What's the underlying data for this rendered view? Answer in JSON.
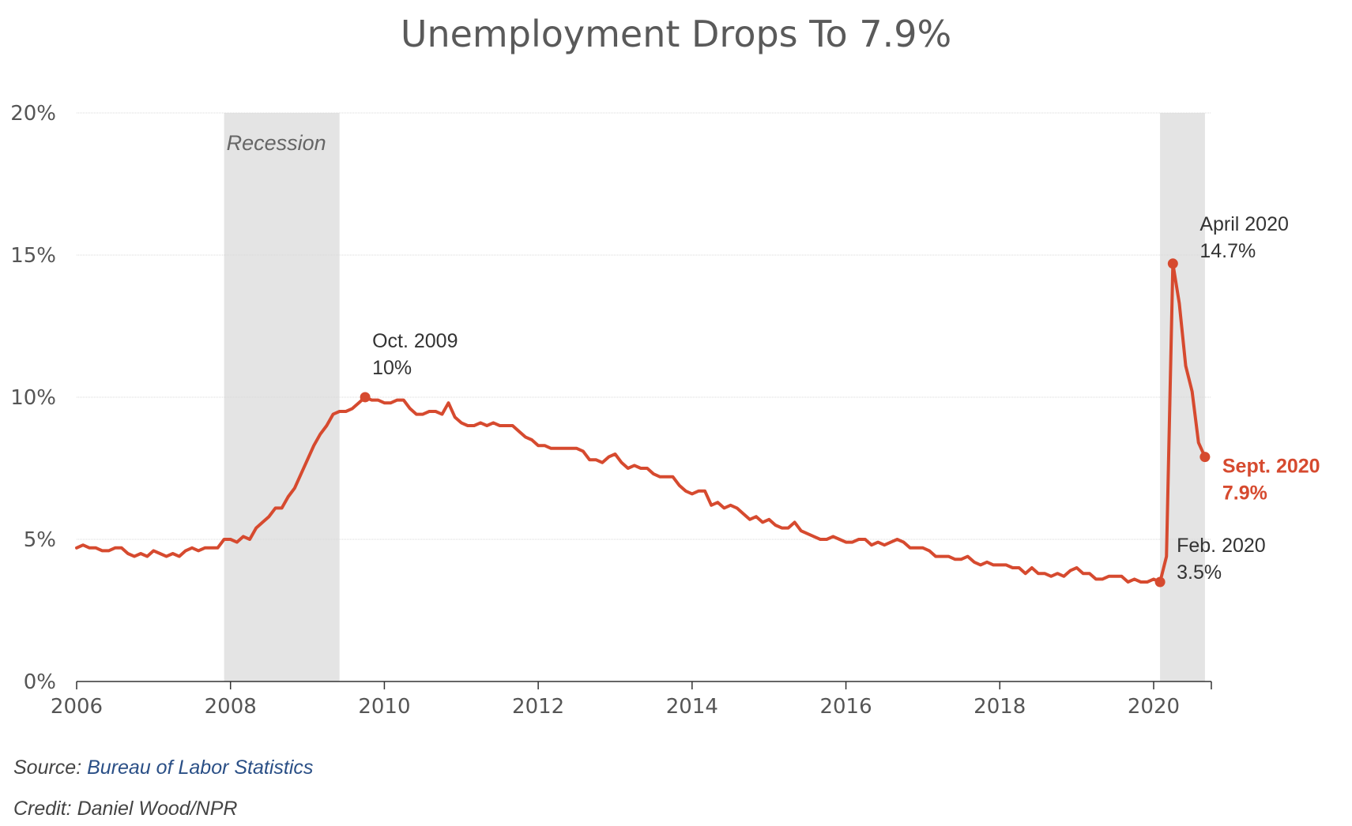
{
  "title": "Unemployment Drops To 7.9%",
  "source_label": "Source:",
  "source_link": "Bureau of Labor Statistics",
  "credit": "Credit: Daniel Wood/NPR",
  "colors": {
    "line": "#d64a2f",
    "recession": "#e4e4e4",
    "grid": "#d9d9d9",
    "text": "#555555"
  },
  "chart_data": {
    "type": "line",
    "title": "Unemployment Drops To 7.9%",
    "xlabel": "",
    "ylabel": "",
    "xlim": [
      2006.0,
      2020.75
    ],
    "ylim": [
      0,
      20
    ],
    "x_ticks": [
      2006,
      2008,
      2010,
      2012,
      2014,
      2016,
      2018,
      2020
    ],
    "y_ticks": [
      {
        "v": 0,
        "label": "0%"
      },
      {
        "v": 5,
        "label": "5%"
      },
      {
        "v": 10,
        "label": "10%"
      },
      {
        "v": 15,
        "label": "15%"
      },
      {
        "v": 20,
        "label": "20%"
      }
    ],
    "grid": "horizontal",
    "shaded_regions": [
      {
        "label": "Recession",
        "start": 2007.917,
        "end": 2009.417
      },
      {
        "label": "",
        "start": 2020.083,
        "end": 2020.667
      }
    ],
    "series": [
      {
        "start": "2006-01",
        "frequency": "monthly",
        "values": [
          4.7,
          4.8,
          4.7,
          4.7,
          4.6,
          4.6,
          4.7,
          4.7,
          4.5,
          4.4,
          4.5,
          4.4,
          4.6,
          4.5,
          4.4,
          4.5,
          4.4,
          4.6,
          4.7,
          4.6,
          4.7,
          4.7,
          4.7,
          5.0,
          5.0,
          4.9,
          5.1,
          5.0,
          5.4,
          5.6,
          5.8,
          6.1,
          6.1,
          6.5,
          6.8,
          7.3,
          7.8,
          8.3,
          8.7,
          9.0,
          9.4,
          9.5,
          9.5,
          9.6,
          9.8,
          10.0,
          9.9,
          9.9,
          9.8,
          9.8,
          9.9,
          9.9,
          9.6,
          9.4,
          9.4,
          9.5,
          9.5,
          9.4,
          9.8,
          9.3,
          9.1,
          9.0,
          9.0,
          9.1,
          9.0,
          9.1,
          9.0,
          9.0,
          9.0,
          8.8,
          8.6,
          8.5,
          8.3,
          8.3,
          8.2,
          8.2,
          8.2,
          8.2,
          8.2,
          8.1,
          7.8,
          7.8,
          7.7,
          7.9,
          8.0,
          7.7,
          7.5,
          7.6,
          7.5,
          7.5,
          7.3,
          7.2,
          7.2,
          7.2,
          6.9,
          6.7,
          6.6,
          6.7,
          6.7,
          6.2,
          6.3,
          6.1,
          6.2,
          6.1,
          5.9,
          5.7,
          5.8,
          5.6,
          5.7,
          5.5,
          5.4,
          5.4,
          5.6,
          5.3,
          5.2,
          5.1,
          5.0,
          5.0,
          5.1,
          5.0,
          4.9,
          4.9,
          5.0,
          5.0,
          4.8,
          4.9,
          4.8,
          4.9,
          5.0,
          4.9,
          4.7,
          4.7,
          4.7,
          4.6,
          4.4,
          4.4,
          4.4,
          4.3,
          4.3,
          4.4,
          4.2,
          4.1,
          4.2,
          4.1,
          4.1,
          4.1,
          4.0,
          4.0,
          3.8,
          4.0,
          3.8,
          3.8,
          3.7,
          3.8,
          3.7,
          3.9,
          4.0,
          3.8,
          3.8,
          3.6,
          3.6,
          3.7,
          3.7,
          3.7,
          3.5,
          3.6,
          3.5,
          3.5,
          3.6,
          3.5,
          4.4,
          14.7,
          13.3,
          11.1,
          10.2,
          8.4,
          7.9
        ]
      }
    ],
    "annotations": [
      {
        "date": "2009-10",
        "y": 10.0,
        "lines": [
          "Oct. 2009",
          "10%"
        ],
        "highlight": false
      },
      {
        "date": "2020-02",
        "y": 3.5,
        "lines": [
          "Feb. 2020",
          "3.5%"
        ],
        "highlight": false
      },
      {
        "date": "2020-04",
        "y": 14.7,
        "lines": [
          "April 2020",
          "14.7%"
        ],
        "highlight": false
      },
      {
        "date": "2020-09",
        "y": 7.9,
        "lines": [
          "Sept. 2020",
          "7.9%"
        ],
        "highlight": true
      }
    ]
  }
}
